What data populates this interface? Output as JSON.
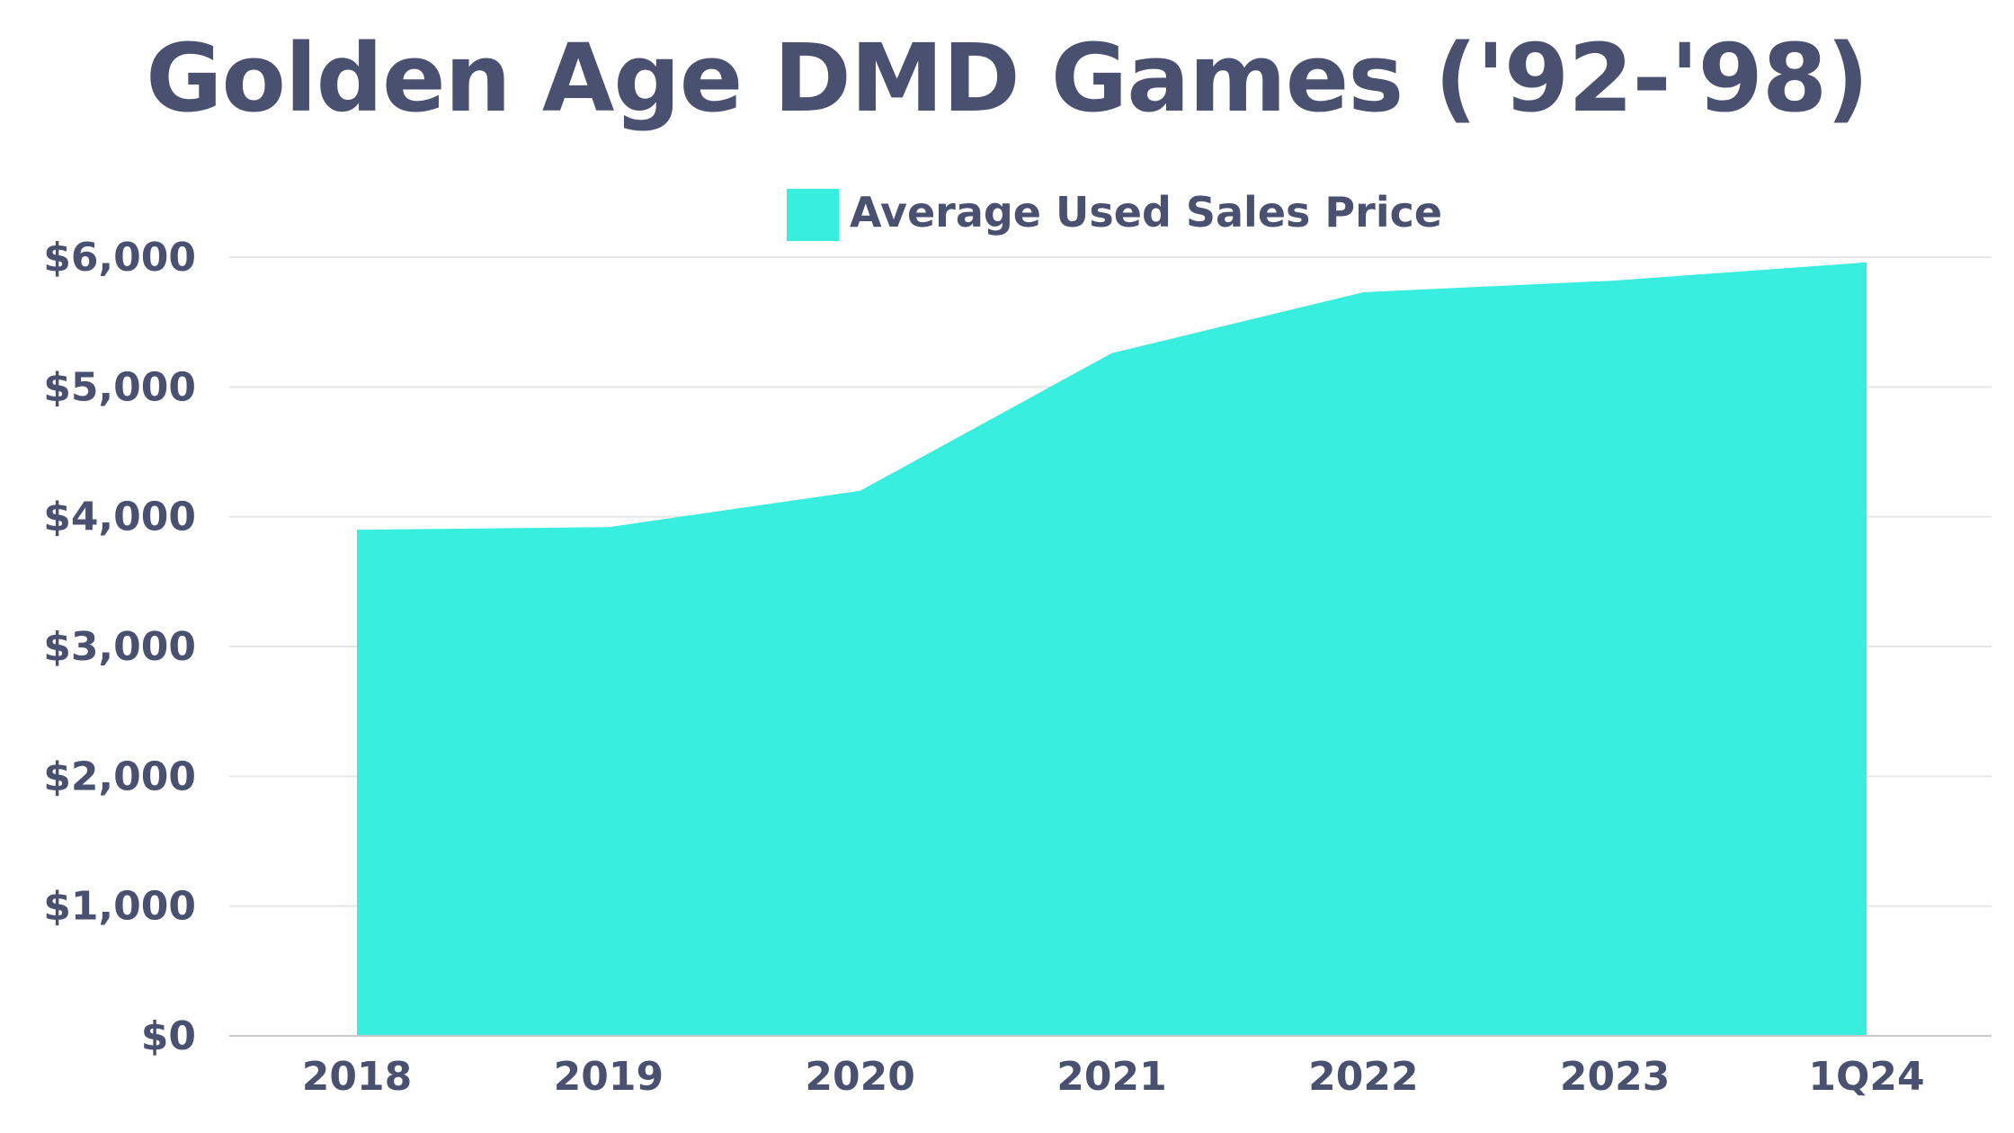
{
  "chart_data": {
    "type": "area",
    "title": "Golden Age DMD Games ('92-'98)",
    "categories": [
      "2018",
      "2019",
      "2020",
      "2021",
      "2022",
      "2023",
      "1Q24"
    ],
    "series": [
      {
        "name": "Average Used Sales Price",
        "values": [
          3900,
          3920,
          4200,
          5260,
          5730,
          5820,
          5960
        ],
        "color": "#37eedf"
      }
    ],
    "yticks": [
      0,
      1000,
      2000,
      3000,
      4000,
      5000,
      6000
    ],
    "ytick_labels": [
      "$0",
      "$1,000",
      "$2,000",
      "$3,000",
      "$4,000",
      "$5,000",
      "$6,000"
    ],
    "ylim": [
      0,
      6000
    ],
    "xlabel": "",
    "ylabel": "",
    "grid": true,
    "legend_position": "top-center"
  },
  "colors": {
    "text": "#4a5170",
    "grid": "#e6e6e6",
    "axis": "#c8c8c8"
  }
}
